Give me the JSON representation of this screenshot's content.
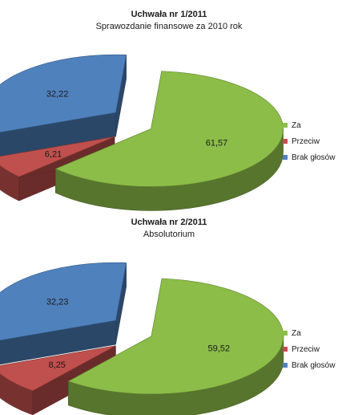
{
  "colors": {
    "za": "#8cbd48",
    "przeciw": "#c0504d",
    "brak": "#4f81bd"
  },
  "chart_data": [
    {
      "type": "pie",
      "title": "Uchwała nr 1/2011",
      "subtitle": "Sprawozdanie finansowe za 2010 rok",
      "categories": [
        "Za",
        "Przeciw",
        "Brak głosów"
      ],
      "values": [
        61.57,
        6.21,
        32.22
      ],
      "data_labels": [
        "61,57",
        "6,21",
        "32,22"
      ],
      "legend": [
        "Za",
        "Przeciw",
        "Brak głosów"
      ],
      "legend_position": "right",
      "style": "3d exploded"
    },
    {
      "type": "pie",
      "title": "Uchwała nr 2/2011",
      "subtitle": "Absolutorium",
      "categories": [
        "Za",
        "Przeciw",
        "Brak głosów"
      ],
      "values": [
        59.52,
        8.25,
        32.23
      ],
      "data_labels": [
        "59,52",
        "8,25",
        "32,23"
      ],
      "legend": [
        "Za",
        "Przeciw",
        "Brak głosów"
      ],
      "legend_position": "right",
      "style": "3d exploded"
    }
  ]
}
